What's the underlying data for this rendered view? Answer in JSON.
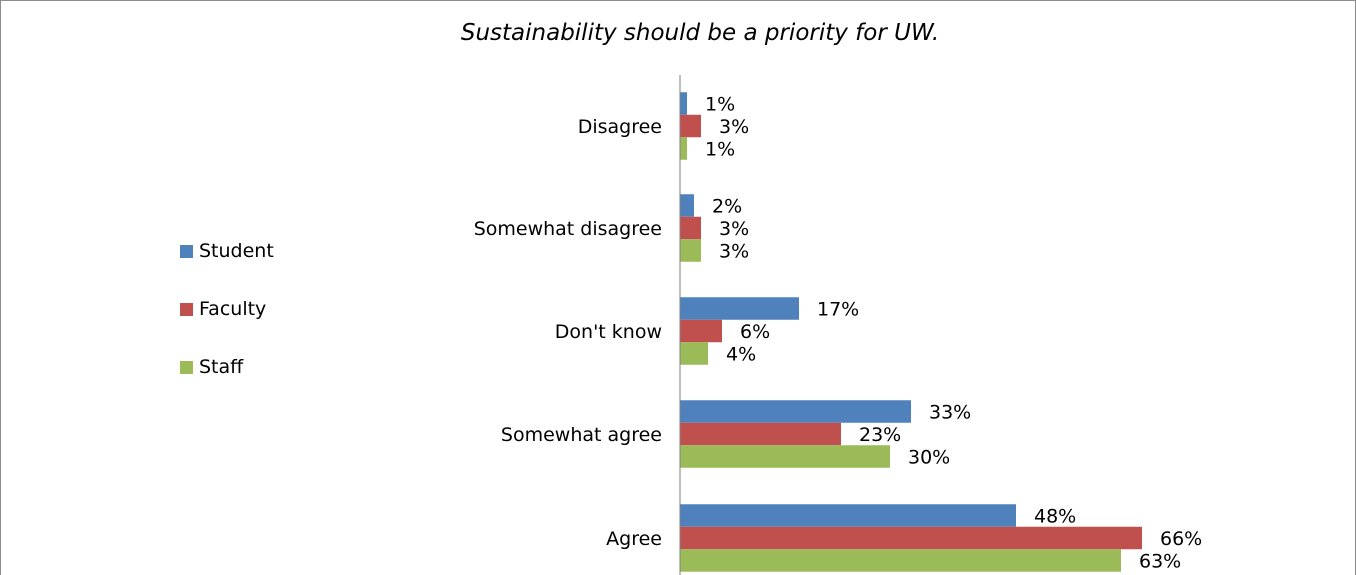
{
  "chart_data": {
    "type": "bar",
    "orientation": "horizontal",
    "title": "Sustainability should be a priority for UW.",
    "categories": [
      "Disagree",
      "Somewhat disagree",
      "Don't know",
      "Somewhat agree",
      "Agree"
    ],
    "series": [
      {
        "name": "Student",
        "color": "#4f81bd",
        "values": [
          1,
          2,
          17,
          33,
          48
        ],
        "labels": [
          "1%",
          "2%",
          "17%",
          "33%",
          "48%"
        ]
      },
      {
        "name": "Faculty",
        "color": "#c0504d",
        "values": [
          3,
          3,
          6,
          23,
          66
        ],
        "labels": [
          "3%",
          "3%",
          "6%",
          "23%",
          "66%"
        ]
      },
      {
        "name": "Staff",
        "color": "#9bbb59",
        "values": [
          1,
          3,
          4,
          30,
          63
        ],
        "labels": [
          "1%",
          "3%",
          "4%",
          "30%",
          "63%"
        ]
      }
    ],
    "value_unit": "%",
    "legend_position": "left",
    "grid": false
  }
}
